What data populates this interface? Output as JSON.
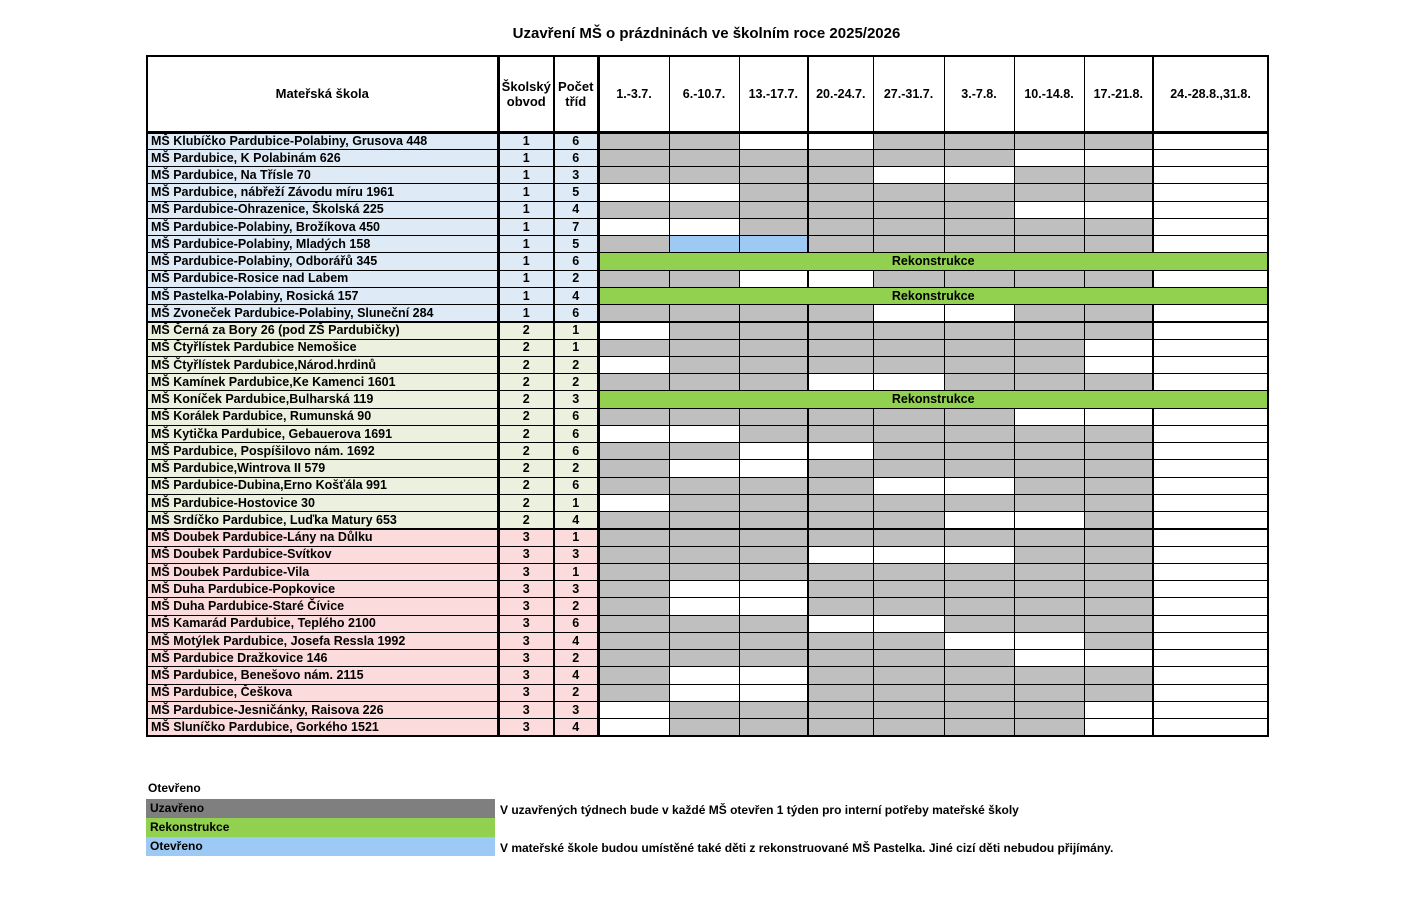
{
  "title": "Uzavření MŠ o prázdninách ve školním roce 2025/2026",
  "table": {
    "headers": {
      "school": "Mateřská škola",
      "district": "Školský obvod",
      "classes": "Počet tříd",
      "weeks": [
        "1.-3.7.",
        "6.-10.7.",
        "13.-17.7.",
        "20.-24.7.",
        "27.-31.7.",
        "3.-7.8.",
        "10.-14.8.",
        "17.-21.8.",
        "24.-28.8.,31.8."
      ]
    },
    "rekonstrukce_label": "Rekonstrukce",
    "cell_legend": {
      "C": "Uzavřeno",
      "O": "Otevřeno",
      "B": "Otevřeno (umístěné děti z MŠ Pastelka)",
      "R": "Rekonstrukce celé léto"
    },
    "rows": [
      {
        "school": "MŠ Klubíčko Pardubice-Polabiny, Grusova 448",
        "district": "1",
        "classes": "6",
        "cells": "CCOOCCCCO"
      },
      {
        "school": "MŠ Pardubice, K Polabinám 626",
        "district": "1",
        "classes": "6",
        "cells": "CCCCCCOOO"
      },
      {
        "school": "MŠ Pardubice, Na Třísle 70",
        "district": "1",
        "classes": "3",
        "cells": "CCCCOOCCO"
      },
      {
        "school": "MŠ Pardubice, nábřeží Závodu míru 1961",
        "district": "1",
        "classes": "5",
        "cells": "OOCCCCCCO"
      },
      {
        "school": "MŠ Pardubice-Ohrazenice, Školská 225",
        "district": "1",
        "classes": "4",
        "cells": "CCCCCCOOO"
      },
      {
        "school": "MŠ Pardubice-Polabiny, Brožíkova 450",
        "district": "1",
        "classes": "7",
        "cells": "OOCCCCCCO"
      },
      {
        "school": "MŠ Pardubice-Polabiny, Mladých 158",
        "district": "1",
        "classes": "5",
        "cells": "CBBCCCCCO"
      },
      {
        "school": "MŠ Pardubice-Polabiny, Odborářů 345",
        "district": "1",
        "classes": "6",
        "cells": "R"
      },
      {
        "school": "MŠ Pardubice-Rosice nad Labem",
        "district": "1",
        "classes": "2",
        "cells": "CCOOCCCCO"
      },
      {
        "school": "MŠ Pastelka-Polabiny, Rosická 157",
        "district": "1",
        "classes": "4",
        "cells": "R"
      },
      {
        "school": "MŠ Zvoneček Pardubice-Polabiny, Sluneční 284",
        "district": "1",
        "classes": "6",
        "cells": "CCCCOOCCO"
      },
      {
        "school": "MŠ Černá za Bory 26 (pod ZŠ Pardubičky)",
        "district": "2",
        "classes": "1",
        "cells": "OCCCCCCCO"
      },
      {
        "school": "MŠ Čtyřlístek Pardubice Nemošice",
        "district": "2",
        "classes": "1",
        "cells": "CCCCCCCOO"
      },
      {
        "school": "MŠ Čtyřlístek Pardubice,Národ.hrdinů",
        "district": "2",
        "classes": "2",
        "cells": "OCCCCCCOO"
      },
      {
        "school": "MŠ Kamínek Pardubice,Ke Kamenci 1601",
        "district": "2",
        "classes": "2",
        "cells": "CCCOOCCCO"
      },
      {
        "school": "MŠ Koníček Pardubice,Bulharská 119",
        "district": "2",
        "classes": "3",
        "cells": "R"
      },
      {
        "school": "MŠ Korálek Pardubice, Rumunská 90",
        "district": "2",
        "classes": "6",
        "cells": "CCCCCCOOO"
      },
      {
        "school": "MŠ Kytička Pardubice, Gebauerova 1691",
        "district": "2",
        "classes": "6",
        "cells": "OOCCCCCCO"
      },
      {
        "school": "MŠ Pardubice, Pospíšilovo nám. 1692",
        "district": "2",
        "classes": "6",
        "cells": "CCOOCCCCO"
      },
      {
        "school": "MŠ Pardubice,Wintrova II 579",
        "district": "2",
        "classes": "2",
        "cells": "COOCCCCCO"
      },
      {
        "school": "MŠ Pardubice-Dubina,Erno Košťála 991",
        "district": "2",
        "classes": "6",
        "cells": "CCCCOOCCO"
      },
      {
        "school": "MŠ Pardubice-Hostovice 30",
        "district": "2",
        "classes": "1",
        "cells": "OCCCCCCCO"
      },
      {
        "school": "MŠ Srdíčko Pardubice, Luďka Matury 653",
        "district": "2",
        "classes": "4",
        "cells": "CCCCCOOCO"
      },
      {
        "school": "MŠ Doubek Pardubice-Lány na Důlku",
        "district": "3",
        "classes": "1",
        "cells": "CCCCCCCCO"
      },
      {
        "school": "MŠ Doubek Pardubice-Svítkov",
        "district": "3",
        "classes": "3",
        "cells": "CCCOOOCCO"
      },
      {
        "school": "MŠ Doubek Pardubice-Vila",
        "district": "3",
        "classes": "1",
        "cells": "CCCCCCCCO"
      },
      {
        "school": "MŠ Duha Pardubice-Popkovice",
        "district": "3",
        "classes": "3",
        "cells": "COOCCCCCO"
      },
      {
        "school": "MŠ Duha Pardubice-Staré Čívice",
        "district": "3",
        "classes": "2",
        "cells": "COOCCCCCO"
      },
      {
        "school": "MŠ Kamarád Pardubice, Teplého 2100",
        "district": "3",
        "classes": "6",
        "cells": "CCCOOCCCO"
      },
      {
        "school": "MŠ Motýlek Pardubice, Josefa Ressla 1992",
        "district": "3",
        "classes": "4",
        "cells": "CCCCCOOCO"
      },
      {
        "school": "MŠ Pardubice Dražkovice 146",
        "district": "3",
        "classes": "2",
        "cells": "CCCCCCOOO"
      },
      {
        "school": "MŠ Pardubice, Benešovo nám. 2115",
        "district": "3",
        "classes": "4",
        "cells": "COOCCCCCO"
      },
      {
        "school": "MŠ Pardubice, Češkova",
        "district": "3",
        "classes": "2",
        "cells": "COOCCCCCO"
      },
      {
        "school": "MŠ Pardubice-Jesničánky, Raisova 226",
        "district": "3",
        "classes": "3",
        "cells": "OCCCCCCOO"
      },
      {
        "school": "MŠ Sluníčko Pardubice, Gorkého 1521",
        "district": "3",
        "classes": "4",
        "cells": "OCCCCCCOO"
      }
    ]
  },
  "legend": {
    "open_label": "Otevřeno",
    "items": [
      {
        "label": "Uzavřeno",
        "color": "#7F7F7F",
        "note": "V uzavřených týdnech bude v každé MŠ otevřen 1 týden pro interní potřeby mateřské školy"
      },
      {
        "label": "Rekonstrukce",
        "color": "#92D050",
        "note": ""
      },
      {
        "label": "Otevřeno",
        "color": "#9DC9F5",
        "note": "V mateřské škole budou umístěné také děti z rekonstruované MŠ Pastelka. Jiné cizí děti nebudou přijímány."
      }
    ]
  },
  "colors": {
    "closed_cell": "#BFBFBF",
    "open_cell": "#FFFFFF",
    "special_open_cell": "#9DC9F5",
    "rekonstrukce_cell": "#92D050",
    "district1_row_tint": "#DEEBF7",
    "district2_row_tint": "#EBF1DE",
    "district3_row_tint": "#FBDBDB",
    "legend_closed": "#7F7F7F"
  }
}
